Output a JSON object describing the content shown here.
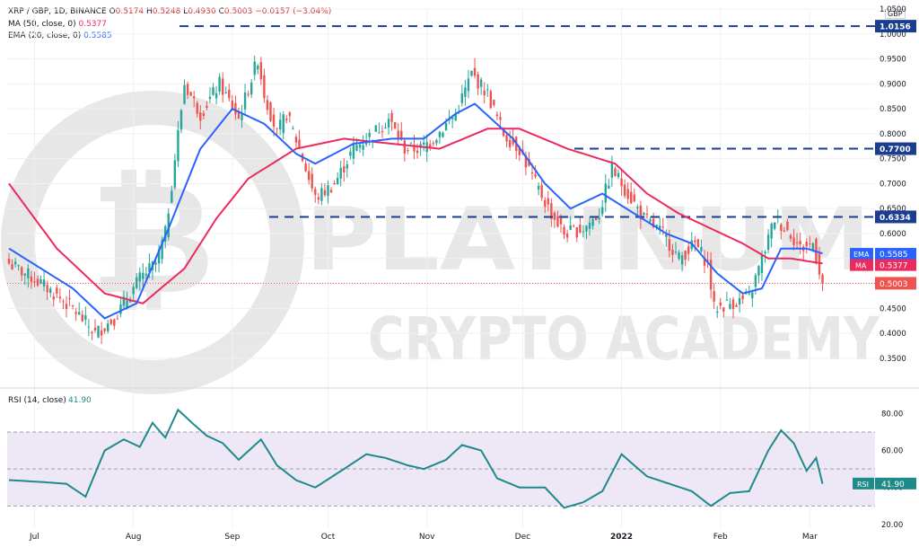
{
  "header": {
    "symbol_line": "XRP / GBP, 1D, BINANCE",
    "open_label": "O",
    "open": "0.5174",
    "high_label": "H",
    "high": "0.5248",
    "low_label": "L",
    "low": "0.4930",
    "close_label": "C",
    "close": "0.5003",
    "change": "−0.0157 (−3.04%)",
    "ma_line": "MA (50, close, 0)",
    "ma_value": "0.5377",
    "ema_line": "EMA (20, close, 0)",
    "ema_value": "0.5585",
    "unit": "GBP"
  },
  "watermark": {
    "line1": "PLATINUM",
    "line2": "CRYPTO ACADEMY"
  },
  "colors": {
    "up": "#26a69a",
    "down": "#ef5350",
    "ema": "#2962ff",
    "ma": "#ed2a5d",
    "level": "#1a3d8f",
    "rsi": "#1f8a8a",
    "rsi_band": "#ede7f6"
  },
  "chart_data": [
    {
      "type": "candlestick",
      "title": "XRP / GBP, 1D, BINANCE",
      "x_ticks": [
        "Jul",
        "Aug",
        "Sep",
        "Oct",
        "Nov",
        "Dec",
        "2022",
        "Feb",
        "Mar"
      ],
      "y_ticks": [
        0.35,
        0.4,
        0.45,
        0.5,
        0.55,
        0.6,
        0.65,
        0.7,
        0.75,
        0.8,
        0.85,
        0.9,
        0.95,
        1.0,
        1.05
      ],
      "ylim": [
        0.33,
        1.05
      ],
      "levels": [
        1.0156,
        0.77,
        0.6334
      ],
      "level_labels": [
        "1.0156",
        "0.7700",
        "0.6334"
      ],
      "last_price": 0.5003,
      "last_label": "0.5003",
      "ema_label": "EMA",
      "ema_value": 0.5585,
      "ema_value_label": "0.5585",
      "ma_label": "MA",
      "ma_value": 0.5377,
      "ma_value_label": "0.5377",
      "close_anchors": [
        [
          0,
          0.54
        ],
        [
          10,
          0.5
        ],
        [
          20,
          0.45
        ],
        [
          27,
          0.4
        ],
        [
          33,
          0.43
        ],
        [
          41,
          0.51
        ],
        [
          46,
          0.54
        ],
        [
          49,
          0.6
        ],
        [
          55,
          0.9
        ],
        [
          60,
          0.84
        ],
        [
          66,
          0.9
        ],
        [
          72,
          0.83
        ],
        [
          78,
          0.95
        ],
        [
          80,
          0.88
        ],
        [
          84,
          0.8
        ],
        [
          87,
          0.84
        ],
        [
          91,
          0.77
        ],
        [
          96,
          0.67
        ],
        [
          102,
          0.7
        ],
        [
          108,
          0.77
        ],
        [
          114,
          0.8
        ],
        [
          119,
          0.83
        ],
        [
          124,
          0.77
        ],
        [
          129,
          0.77
        ],
        [
          133,
          0.79
        ],
        [
          140,
          0.84
        ],
        [
          145,
          0.92
        ],
        [
          150,
          0.88
        ],
        [
          155,
          0.8
        ],
        [
          160,
          0.77
        ],
        [
          165,
          0.7
        ],
        [
          170,
          0.64
        ],
        [
          174,
          0.6
        ],
        [
          180,
          0.61
        ],
        [
          185,
          0.64
        ],
        [
          189,
          0.73
        ],
        [
          195,
          0.67
        ],
        [
          199,
          0.63
        ],
        [
          205,
          0.6
        ],
        [
          210,
          0.55
        ],
        [
          215,
          0.58
        ],
        [
          219,
          0.54
        ],
        [
          221,
          0.45
        ],
        [
          226,
          0.46
        ],
        [
          232,
          0.47
        ],
        [
          236,
          0.55
        ],
        [
          240,
          0.63
        ],
        [
          245,
          0.6
        ],
        [
          248,
          0.57
        ],
        [
          252,
          0.58
        ],
        [
          255,
          0.5
        ]
      ],
      "ema_anchors": [
        [
          0,
          0.57
        ],
        [
          20,
          0.49
        ],
        [
          30,
          0.43
        ],
        [
          40,
          0.46
        ],
        [
          50,
          0.61
        ],
        [
          60,
          0.77
        ],
        [
          70,
          0.85
        ],
        [
          80,
          0.82
        ],
        [
          90,
          0.76
        ],
        [
          96,
          0.74
        ],
        [
          108,
          0.78
        ],
        [
          120,
          0.79
        ],
        [
          130,
          0.79
        ],
        [
          140,
          0.84
        ],
        [
          146,
          0.86
        ],
        [
          158,
          0.79
        ],
        [
          168,
          0.7
        ],
        [
          176,
          0.65
        ],
        [
          186,
          0.68
        ],
        [
          196,
          0.64
        ],
        [
          206,
          0.6
        ],
        [
          214,
          0.58
        ],
        [
          222,
          0.52
        ],
        [
          230,
          0.48
        ],
        [
          236,
          0.49
        ],
        [
          242,
          0.57
        ],
        [
          250,
          0.57
        ],
        [
          255,
          0.56
        ]
      ],
      "ma_anchors": [
        [
          0,
          0.7
        ],
        [
          15,
          0.57
        ],
        [
          30,
          0.48
        ],
        [
          42,
          0.46
        ],
        [
          55,
          0.53
        ],
        [
          65,
          0.63
        ],
        [
          75,
          0.71
        ],
        [
          90,
          0.77
        ],
        [
          105,
          0.79
        ],
        [
          120,
          0.78
        ],
        [
          135,
          0.77
        ],
        [
          150,
          0.81
        ],
        [
          160,
          0.81
        ],
        [
          175,
          0.77
        ],
        [
          190,
          0.74
        ],
        [
          200,
          0.68
        ],
        [
          210,
          0.64
        ],
        [
          220,
          0.61
        ],
        [
          230,
          0.58
        ],
        [
          238,
          0.55
        ],
        [
          245,
          0.55
        ],
        [
          255,
          0.54
        ]
      ]
    },
    {
      "type": "line",
      "title": "RSI (14, close)",
      "value_label": "41.90",
      "current": 41.9,
      "badge": "RSI",
      "y_ticks": [
        20,
        40,
        60,
        80
      ],
      "ylim": [
        18,
        88
      ],
      "band": [
        30,
        70
      ],
      "midline": 50,
      "anchors": [
        [
          0,
          44
        ],
        [
          10,
          43
        ],
        [
          18,
          42
        ],
        [
          24,
          35
        ],
        [
          30,
          60
        ],
        [
          36,
          66
        ],
        [
          41,
          62
        ],
        [
          45,
          75
        ],
        [
          49,
          67
        ],
        [
          53,
          82
        ],
        [
          58,
          74
        ],
        [
          62,
          68
        ],
        [
          67,
          64
        ],
        [
          72,
          55
        ],
        [
          79,
          66
        ],
        [
          84,
          52
        ],
        [
          90,
          44
        ],
        [
          96,
          40
        ],
        [
          105,
          50
        ],
        [
          112,
          58
        ],
        [
          118,
          56
        ],
        [
          125,
          52
        ],
        [
          130,
          50
        ],
        [
          137,
          55
        ],
        [
          142,
          63
        ],
        [
          148,
          60
        ],
        [
          153,
          45
        ],
        [
          160,
          40
        ],
        [
          168,
          40
        ],
        [
          174,
          29
        ],
        [
          180,
          32
        ],
        [
          186,
          38
        ],
        [
          192,
          58
        ],
        [
          200,
          46
        ],
        [
          207,
          42
        ],
        [
          214,
          38
        ],
        [
          220,
          30
        ],
        [
          226,
          37
        ],
        [
          232,
          38
        ],
        [
          238,
          60
        ],
        [
          242,
          71
        ],
        [
          246,
          64
        ],
        [
          250,
          49
        ],
        [
          253,
          56
        ],
        [
          255,
          42
        ]
      ]
    }
  ]
}
